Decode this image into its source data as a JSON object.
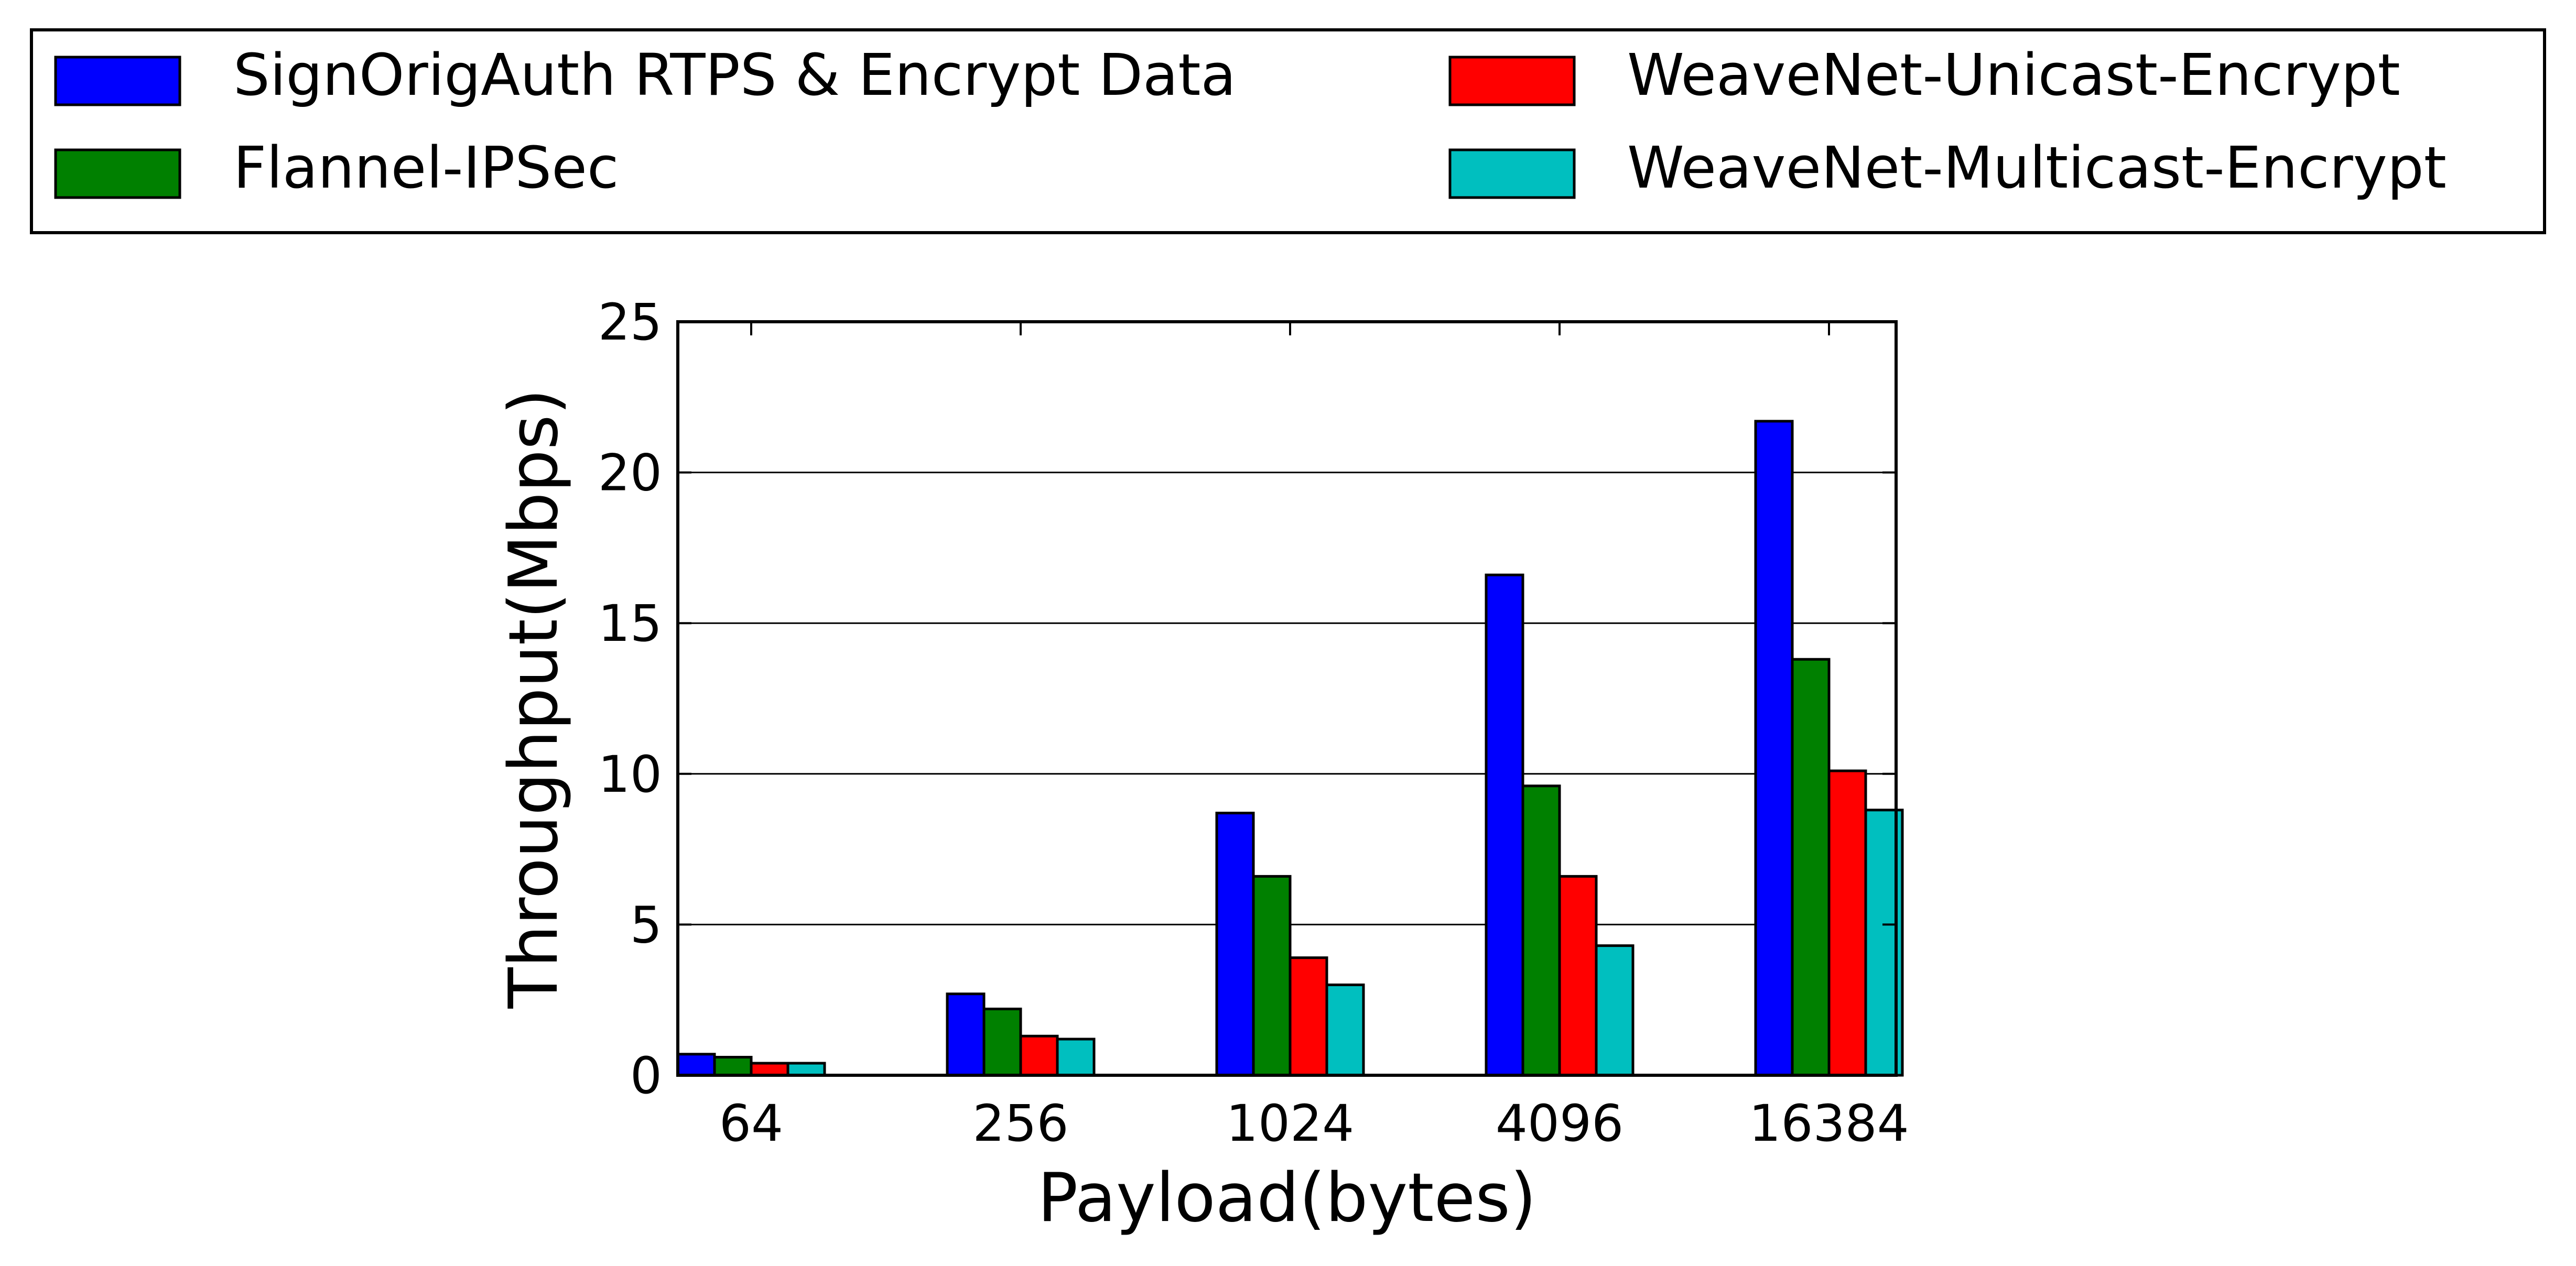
{
  "chart_data": {
    "type": "bar",
    "title": "",
    "xlabel": "Payload(bytes)",
    "ylabel": "Throughput(Mbps)",
    "categories": [
      "64",
      "256",
      "1024",
      "4096",
      "16384"
    ],
    "ylim": [
      0,
      25
    ],
    "yticks": [
      "0",
      "5",
      "10",
      "15",
      "20",
      "25"
    ],
    "grid": "horizontal",
    "legend_position": "top",
    "series": [
      {
        "name": "SignOrigAuth RTPS & Encrypt Data",
        "color": "#0000ff",
        "values": [
          0.7,
          2.7,
          8.7,
          16.6,
          21.7
        ]
      },
      {
        "name": "Flannel-IPSec",
        "color": "#008000",
        "values": [
          0.6,
          2.2,
          6.6,
          9.6,
          13.8
        ]
      },
      {
        "name": "WeaveNet-Unicast-Encrypt",
        "color": "#ff0000",
        "values": [
          0.4,
          1.3,
          3.9,
          6.6,
          10.1
        ]
      },
      {
        "name": "WeaveNet-Multicast-Encrypt",
        "color": "#00bfbf",
        "values": [
          0.4,
          1.2,
          3.0,
          4.3,
          8.8
        ]
      }
    ]
  }
}
